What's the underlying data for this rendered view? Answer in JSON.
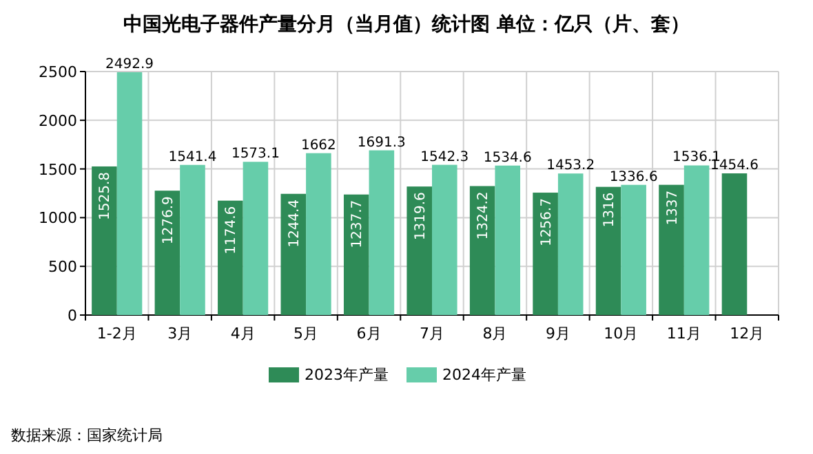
{
  "chart_data": {
    "type": "bar",
    "title": "中国光电子器件产量分月（当月值）统计图 单位：亿只（片、套）",
    "categories": [
      "1-2月",
      "3月",
      "4月",
      "5月",
      "6月",
      "7月",
      "8月",
      "9月",
      "10月",
      "11月",
      "12月"
    ],
    "series": [
      {
        "name": "2023年产量",
        "color": "#2e8b57",
        "values": [
          1525.8,
          1276.9,
          1174.6,
          1244.4,
          1237.7,
          1319.6,
          1324.2,
          1256.7,
          1316,
          1337,
          1454.6
        ]
      },
      {
        "name": "2024年产量",
        "color": "#66cdaa",
        "values": [
          2492.9,
          1541.4,
          1573.1,
          1662,
          1691.3,
          1542.3,
          1534.6,
          1453.2,
          1336.6,
          1536.1,
          null
        ]
      }
    ],
    "ylim": [
      0,
      2500
    ],
    "yticks": [
      0,
      500,
      1000,
      1500,
      2000,
      2500
    ],
    "grid": true,
    "legend": "bottom",
    "data_labels": true,
    "annotations": [
      "数据来源：国家统计局"
    ]
  }
}
